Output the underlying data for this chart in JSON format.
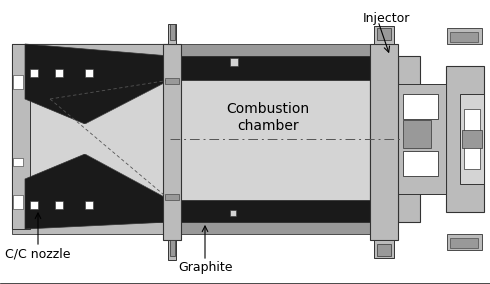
{
  "figsize": [
    4.9,
    2.84
  ],
  "dpi": 100,
  "bg_color": "#ffffff",
  "label_injector": "Injector",
  "label_cc_nozzle": "C/C nozzle",
  "label_graphite": "Graphite",
  "colors": {
    "dark_gray": "#555555",
    "edge": "#333333",
    "mid_gray": "#999999",
    "light_gray": "#bbbbbb",
    "very_light_gray": "#d4d4d4",
    "pale_gray": "#e8e8e8",
    "black": "#111111",
    "white": "#ffffff",
    "dark": "#1a1a1a",
    "medium": "#888888"
  }
}
